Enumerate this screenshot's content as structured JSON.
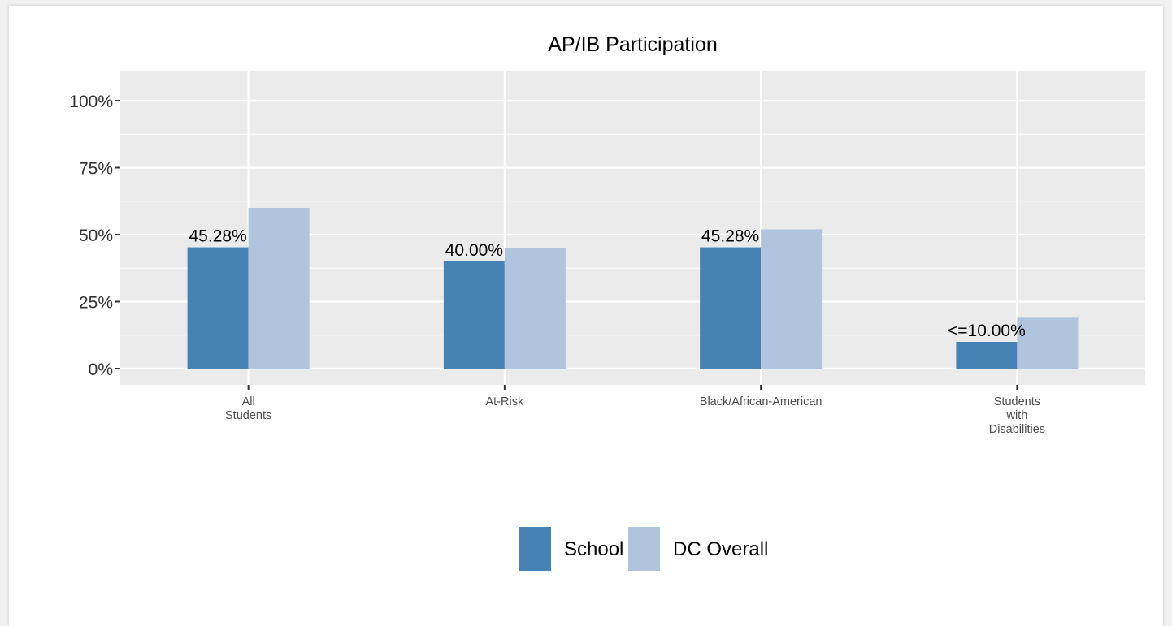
{
  "chart_data": {
    "type": "bar",
    "title": "AP/IB Participation",
    "xlabel": "",
    "ylabel": "",
    "ylim": [
      0,
      1.1
    ],
    "y_ticks": [
      {
        "value": 0,
        "label": "0%"
      },
      {
        "value": 0.25,
        "label": "25%"
      },
      {
        "value": 0.5,
        "label": "50%"
      },
      {
        "value": 0.75,
        "label": "75%"
      },
      {
        "value": 1.0,
        "label": "100%"
      }
    ],
    "categories": [
      [
        "All",
        "Students"
      ],
      [
        "At-Risk"
      ],
      [
        "Black/African-American"
      ],
      [
        "Students",
        "with",
        "Disabilities"
      ]
    ],
    "series": [
      {
        "name": "School",
        "color": "#4682b4",
        "values": [
          0.4528,
          0.4,
          0.4528,
          0.1
        ],
        "labels": [
          "45.28%",
          "40.00%",
          "45.28%",
          "<=10.00%"
        ]
      },
      {
        "name": "DC Overall",
        "color": "#b0c4de",
        "values": [
          0.6,
          0.45,
          0.52,
          0.19
        ]
      }
    ],
    "grid": true,
    "panel_color": "#ebebeb",
    "legend_position": "bottom"
  }
}
